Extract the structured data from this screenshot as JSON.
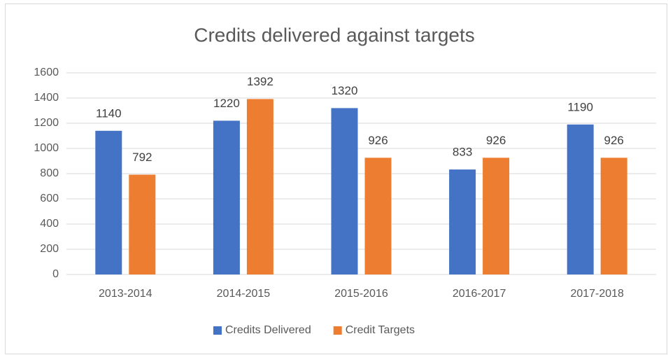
{
  "chart_data": {
    "type": "bar",
    "title": "Credits delivered against targets",
    "categories": [
      "2013-2014",
      "2014-2015",
      "2015-2016",
      "2016-2017",
      "2017-2018"
    ],
    "series": [
      {
        "name": "Credits Delivered",
        "color": "#4472c4",
        "values": [
          1140,
          1220,
          1320,
          833,
          1190
        ]
      },
      {
        "name": "Credit Targets",
        "color": "#ed7d31",
        "values": [
          792,
          1392,
          926,
          926,
          926
        ]
      }
    ],
    "ylim": [
      0,
      1600
    ],
    "yticks": [
      0,
      200,
      400,
      600,
      800,
      1000,
      1200,
      1400,
      1600
    ],
    "grid": true,
    "legend": "bottom"
  }
}
